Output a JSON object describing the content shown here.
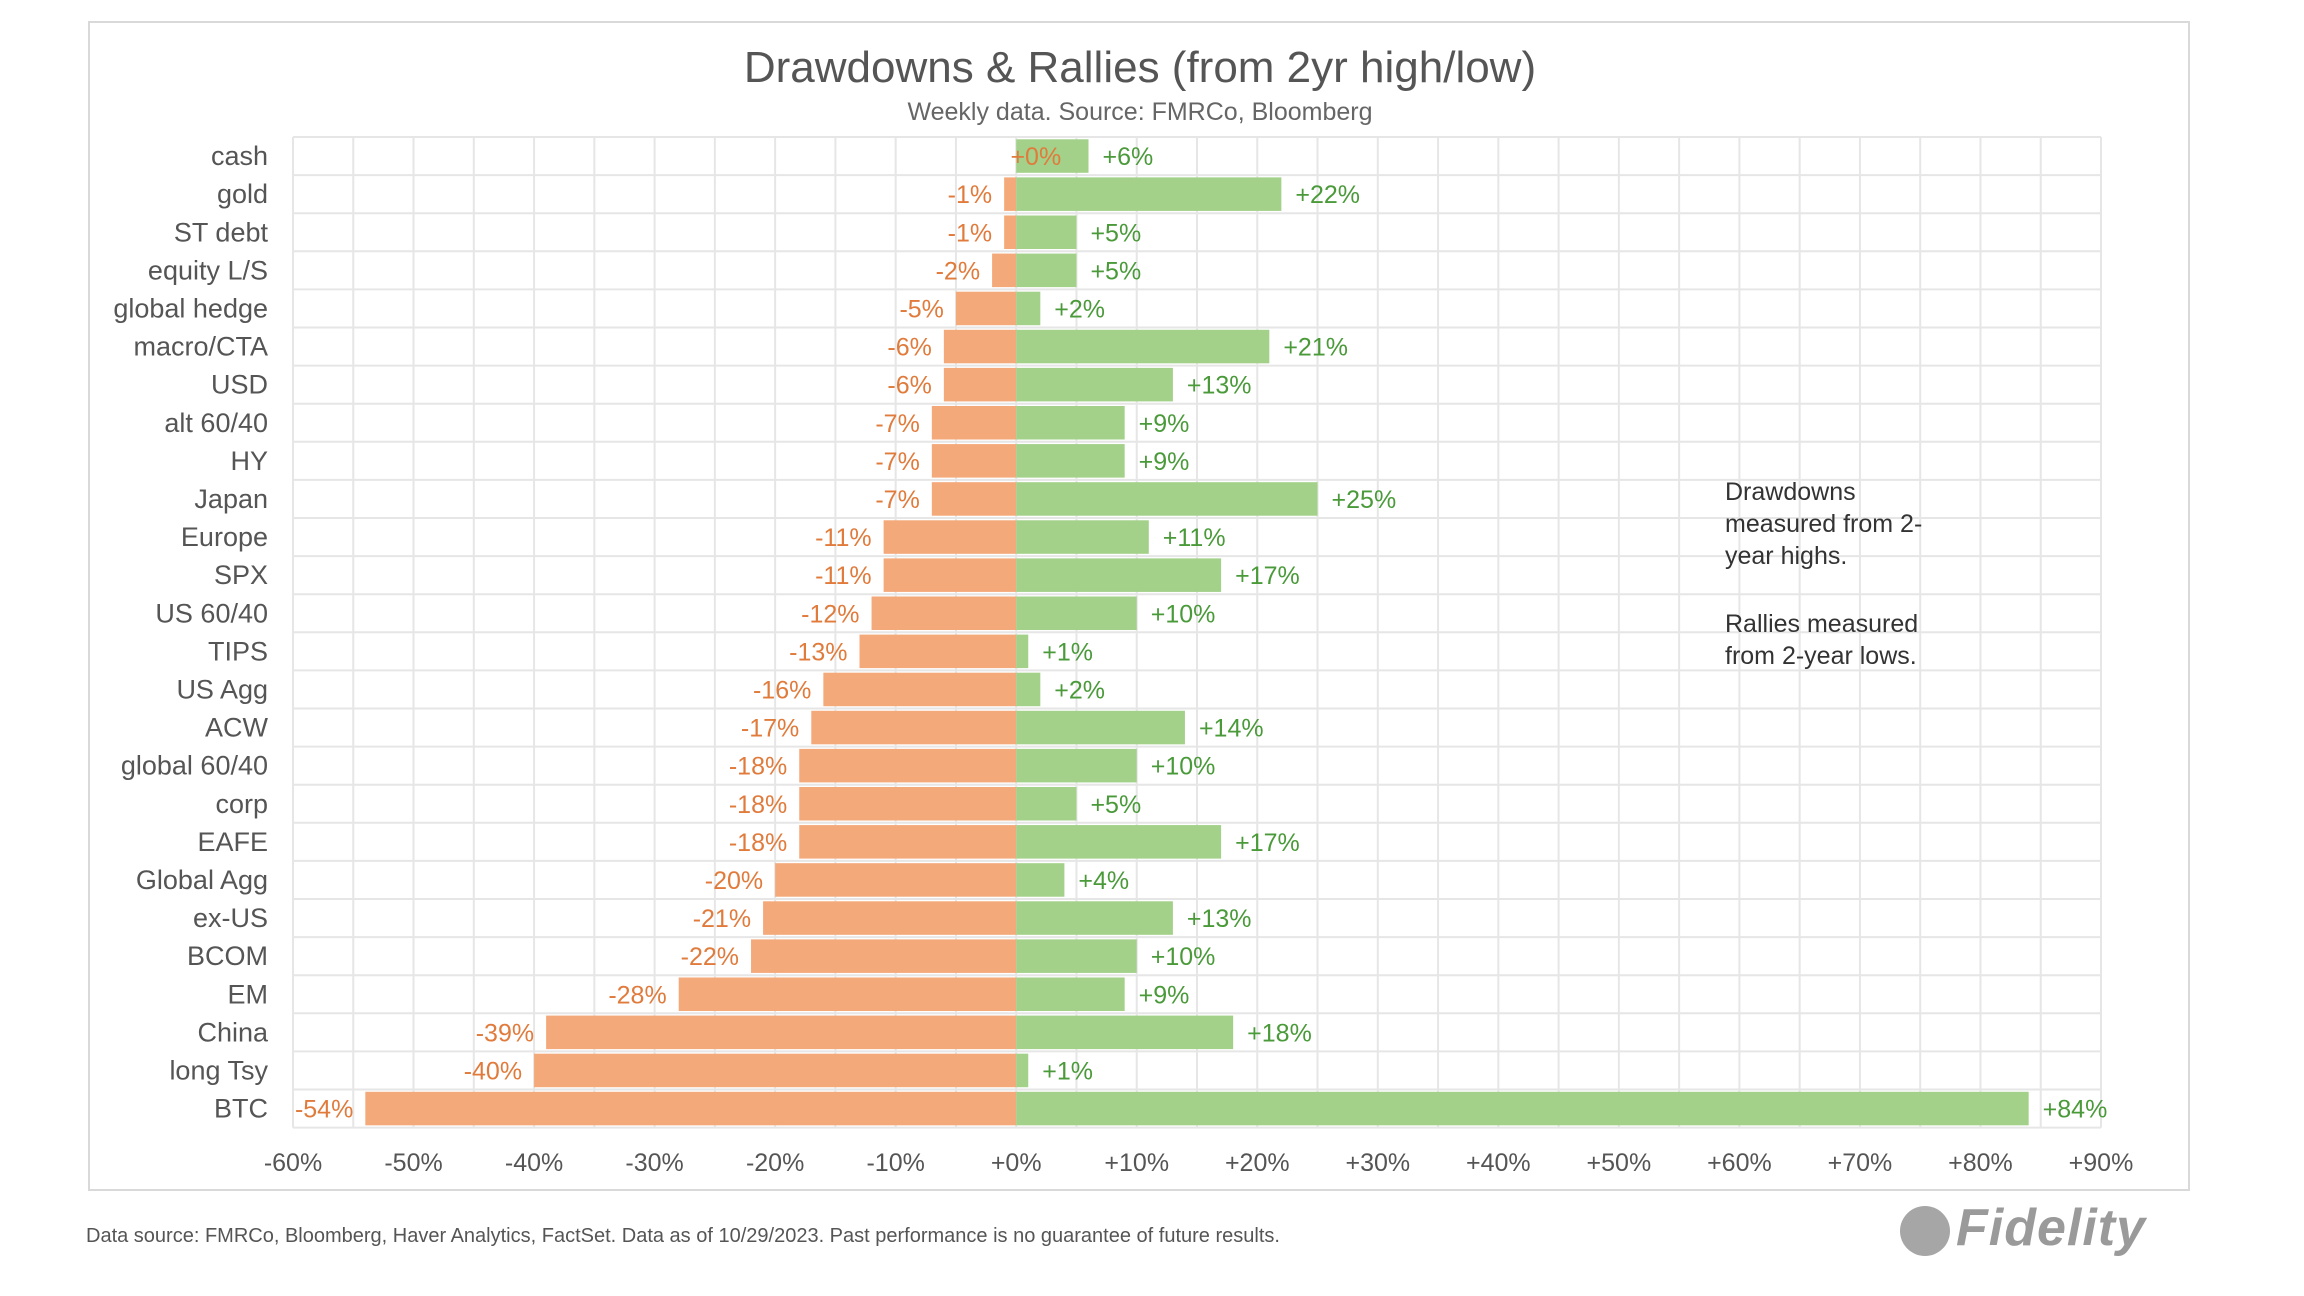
{
  "chart_data": {
    "type": "bar",
    "orientation": "horizontal",
    "title": "Drawdowns & Rallies (from 2yr high/low)",
    "subtitle": "Weekly data.  Source: FMRCo, Bloomberg",
    "categories": [
      "cash",
      "gold",
      "ST debt",
      "equity L/S",
      "global hedge",
      "macro/CTA",
      "USD",
      "alt 60/40",
      "HY",
      "Japan",
      "Europe",
      "SPX",
      "US 60/40",
      "TIPS",
      "US Agg",
      "ACW",
      "global 60/40",
      "corp",
      "EAFE",
      "Global Agg",
      "ex-US",
      "BCOM",
      "EM",
      "China",
      "long Tsy",
      "BTC"
    ],
    "series": [
      {
        "name": "Drawdown",
        "color": "#f4a97a",
        "label_color": "#e07b3c",
        "values": [
          0,
          -1,
          -1,
          -2,
          -5,
          -6,
          -6,
          -7,
          -7,
          -7,
          -11,
          -11,
          -12,
          -13,
          -16,
          -17,
          -18,
          -18,
          -18,
          -20,
          -21,
          -22,
          -28,
          -39,
          -40,
          -54
        ],
        "labels": [
          "+0%",
          "-1%",
          "-1%",
          "-2%",
          "-5%",
          "-6%",
          "-6%",
          "-7%",
          "-7%",
          "-7%",
          "-11%",
          "-11%",
          "-12%",
          "-13%",
          "-16%",
          "-17%",
          "-18%",
          "-18%",
          "-18%",
          "-20%",
          "-21%",
          "-22%",
          "-28%",
          "-39%",
          "-40%",
          "-54%"
        ]
      },
      {
        "name": "Rally",
        "color": "#a3d18a",
        "label_color": "#4a9a3a",
        "values": [
          6,
          22,
          5,
          5,
          2,
          21,
          13,
          9,
          9,
          25,
          11,
          17,
          10,
          1,
          2,
          14,
          10,
          5,
          17,
          4,
          13,
          10,
          9,
          18,
          1,
          84
        ],
        "labels": [
          "+6%",
          "+22%",
          "+5%",
          "+5%",
          "+2%",
          "+21%",
          "+13%",
          "+9%",
          "+9%",
          "+25%",
          "+11%",
          "+17%",
          "+10%",
          "+1%",
          "+2%",
          "+14%",
          "+10%",
          "+5%",
          "+17%",
          "+4%",
          "+13%",
          "+10%",
          "+9%",
          "+18%",
          "+1%",
          "+84%"
        ]
      }
    ],
    "xlim": [
      -60,
      90
    ],
    "xticks": [
      "-60%",
      "-50%",
      "-40%",
      "-30%",
      "-20%",
      "-10%",
      "+0%",
      "+10%",
      "+20%",
      "+30%",
      "+40%",
      "+50%",
      "+60%",
      "+70%",
      "+80%",
      "+90%"
    ],
    "grid": true,
    "annotations": [
      "Drawdowns",
      "measured from 2-",
      "year highs.",
      "Rallies measured",
      "from 2-year lows."
    ]
  },
  "footer": "Data source: FMRCo, Bloomberg, Haver Analytics, FactSet. Data as of 10/29/2023. Past performance is no guarantee of future results.",
  "logo": "Fidelity"
}
